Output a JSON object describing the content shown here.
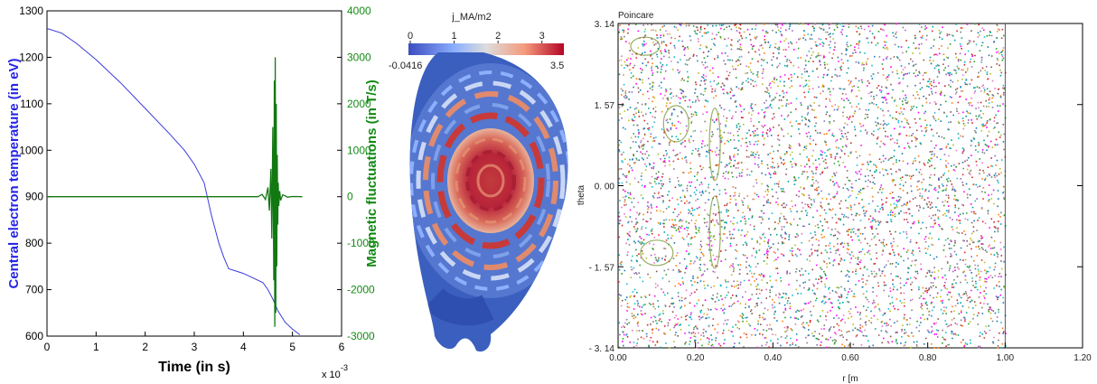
{
  "chart_data": [
    {
      "type": "line",
      "xlabel": "Time (in s)",
      "x_multiplier_label": "x 10",
      "x_multiplier_exp": "-3",
      "xlim": [
        0,
        6
      ],
      "x_ticks": [
        "0",
        "1",
        "2",
        "3",
        "4",
        "5",
        "6"
      ],
      "ylabel_left": "Central electron temperature (in eV)",
      "ylim_left": [
        600,
        1300
      ],
      "y_ticks_left": [
        "600",
        "700",
        "800",
        "900",
        "1000",
        "1100",
        "1200",
        "1300"
      ],
      "ylabel_right": "Magnetic fluctuations (in T/s)",
      "ylim_right": [
        -3000,
        4000
      ],
      "y_ticks_right": [
        "-3000",
        "-2000",
        "-1000",
        "0",
        "1000",
        "2000",
        "3000",
        "4000"
      ],
      "series": [
        {
          "axis": "left",
          "color": "#3a3adc",
          "x": [
            0,
            0.3,
            0.6,
            1.0,
            1.5,
            2.0,
            2.5,
            2.8,
            3.0,
            3.2,
            3.35,
            3.5,
            3.6,
            3.7,
            3.85,
            4.0,
            4.2,
            4.4,
            4.5,
            4.6,
            4.7,
            4.85,
            5.0,
            5.15
          ],
          "y": [
            1262,
            1252,
            1230,
            1195,
            1145,
            1090,
            1035,
            1000,
            970,
            930,
            860,
            800,
            770,
            745,
            740,
            735,
            725,
            715,
            700,
            680,
            655,
            630,
            615,
            603
          ]
        },
        {
          "axis": "right",
          "color": "#127812",
          "x": [
            0,
            4.3,
            4.38,
            4.45,
            4.5,
            4.53,
            4.56,
            4.58,
            4.6,
            4.62,
            4.63,
            4.64,
            4.65,
            4.66,
            4.67,
            4.68,
            4.69,
            4.7,
            4.71,
            4.72,
            4.74,
            4.76,
            4.8,
            4.85,
            4.9,
            5.0,
            5.2
          ],
          "y": [
            0,
            0,
            50,
            -60,
            200,
            -300,
            600,
            -900,
            1500,
            -1800,
            2500,
            -2800,
            3000,
            -2500,
            2000,
            -1500,
            900,
            -600,
            300,
            -200,
            120,
            -80,
            40,
            20,
            -10,
            5,
            0
          ]
        }
      ]
    },
    {
      "type": "heatmap",
      "title": "j_MA/m2",
      "colorbar_ticks": [
        "0",
        "1",
        "2",
        "3"
      ],
      "colorbar_min_label": "-0.0416",
      "colorbar_max_label": "3.5",
      "colormap": [
        "#3b4cc0",
        "#8db0fe",
        "#dddddd",
        "#f49a7b",
        "#b40426"
      ]
    },
    {
      "type": "scatter",
      "title": "Poincare",
      "xlabel": "r [m",
      "ylabel": "theta",
      "xlim": [
        0,
        1.2
      ],
      "ylim": [
        -3.14,
        3.14
      ],
      "x_ticks": [
        "0.00",
        "0.20",
        "0.40",
        "0.60",
        "0.80",
        "1.00",
        "1.20"
      ],
      "y_ticks": [
        "3.14",
        "1.57",
        "0.00",
        "-1.57",
        "-3.14"
      ]
    }
  ]
}
